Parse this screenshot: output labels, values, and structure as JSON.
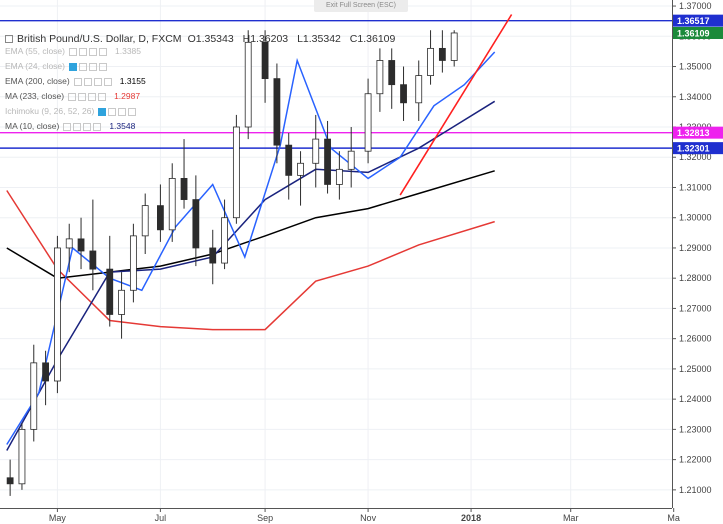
{
  "header": {
    "exit_label": "Exit Full Screen (ESC)",
    "title": "British Pound/U.S. Dollar, D, FXCM",
    "ohlc": {
      "o": "O1.35343",
      "h": "H1.36203",
      "l": "L1.35342",
      "c": "C1.36109"
    }
  },
  "indicators": [
    {
      "label": "EMA (55, close)",
      "value": "1.3385",
      "color": "#1a237e",
      "faded": true
    },
    {
      "label": "EMA (24, close)",
      "value": "",
      "color": "#2962ff",
      "faded": true
    },
    {
      "label": "EMA (200, close)",
      "value": "1.3155",
      "color": "#000000",
      "faded": false
    },
    {
      "label": "MA (233, close)",
      "value": "1.2987",
      "color": "#e53935",
      "faded": false
    },
    {
      "label": "Ichimoku (9, 26, 52, 26)",
      "value": "",
      "color": "#2fa3dd",
      "faded": true
    },
    {
      "label": "MA (10, close)",
      "value": "1.3548",
      "color": "#1a237e",
      "faded": false
    }
  ],
  "chart_data": {
    "type": "candlestick",
    "title": "British Pound/U.S. Dollar, D, FXCM",
    "y_axis": {
      "ticks": [
        "1.37000",
        "1.36000",
        "1.35000",
        "1.34000",
        "1.33000",
        "1.32000",
        "1.31000",
        "1.30000",
        "1.29000",
        "1.28000",
        "1.27000",
        "1.26000",
        "1.25000",
        "1.24000",
        "1.23000",
        "1.22000",
        "1.21000"
      ],
      "range": [
        1.204,
        1.372
      ]
    },
    "x_axis": {
      "ticks": [
        "May",
        "Jul",
        "Sep",
        "Nov",
        "2018",
        "Mar",
        "Ma"
      ]
    },
    "price_labels": [
      {
        "text": "1.36517",
        "value": 1.36517,
        "color": "#1f2fcf",
        "line": true
      },
      {
        "text": "1.36109",
        "value": 1.36109,
        "color": "#1b8a3a",
        "line": false
      },
      {
        "text": "1.32813",
        "value": 1.32813,
        "color": "#ee22ee",
        "line": true
      },
      {
        "text": "1.32301",
        "value": 1.32301,
        "color": "#1f2fcf",
        "line": true
      }
    ],
    "trendline": {
      "from": [
        "2017-11-20",
        1.3075
      ],
      "to": [
        "2018-01-25",
        1.3672
      ],
      "color": "#ff2020"
    },
    "series": [
      {
        "name": "MA (233, close)",
        "color": "#e53935",
        "points": [
          [
            "2017-04-01",
            1.309
          ],
          [
            "2017-05-01",
            1.283
          ],
          [
            "2017-06-01",
            1.266
          ],
          [
            "2017-07-01",
            1.264
          ],
          [
            "2017-08-01",
            1.263
          ],
          [
            "2017-09-01",
            1.263
          ],
          [
            "2017-10-01",
            1.279
          ],
          [
            "2017-11-01",
            1.284
          ],
          [
            "2017-12-01",
            1.291
          ],
          [
            "2018-01-15",
            1.2987
          ]
        ]
      },
      {
        "name": "EMA (200, close)",
        "color": "#000000",
        "points": [
          [
            "2017-04-01",
            1.29
          ],
          [
            "2017-05-01",
            1.28
          ],
          [
            "2017-06-01",
            1.282
          ],
          [
            "2017-07-01",
            1.284
          ],
          [
            "2017-08-01",
            1.288
          ],
          [
            "2017-09-01",
            1.294
          ],
          [
            "2017-10-01",
            1.3
          ],
          [
            "2017-11-01",
            1.303
          ],
          [
            "2017-12-01",
            1.308
          ],
          [
            "2018-01-15",
            1.3155
          ]
        ]
      },
      {
        "name": "EMA (55, close)",
        "color": "#1a237e",
        "points": [
          [
            "2017-04-01",
            1.223
          ],
          [
            "2017-05-01",
            1.253
          ],
          [
            "2017-06-01",
            1.282
          ],
          [
            "2017-07-01",
            1.283
          ],
          [
            "2017-08-01",
            1.287
          ],
          [
            "2017-09-01",
            1.306
          ],
          [
            "2017-10-01",
            1.316
          ],
          [
            "2017-11-01",
            1.315
          ],
          [
            "2017-12-01",
            1.323
          ],
          [
            "2018-01-15",
            1.3385
          ]
        ]
      },
      {
        "name": "MA (10, close)",
        "color": "#2962ff",
        "points": [
          [
            "2017-04-01",
            1.225
          ],
          [
            "2017-04-20",
            1.242
          ],
          [
            "2017-05-10",
            1.29
          ],
          [
            "2017-06-01",
            1.28
          ],
          [
            "2017-06-20",
            1.276
          ],
          [
            "2017-07-10",
            1.297
          ],
          [
            "2017-08-01",
            1.311
          ],
          [
            "2017-08-20",
            1.287
          ],
          [
            "2017-09-10",
            1.324
          ],
          [
            "2017-09-20",
            1.352
          ],
          [
            "2017-10-10",
            1.323
          ],
          [
            "2017-11-01",
            1.313
          ],
          [
            "2017-11-20",
            1.32
          ],
          [
            "2017-12-10",
            1.337
          ],
          [
            "2017-12-28",
            1.344
          ],
          [
            "2018-01-15",
            1.3548
          ]
        ]
      }
    ],
    "candles": [
      [
        "2017-04-03",
        1.214,
        1.22,
        1.208,
        1.212
      ],
      [
        "2017-04-10",
        1.212,
        1.232,
        1.21,
        1.23
      ],
      [
        "2017-04-17",
        1.23,
        1.258,
        1.226,
        1.252
      ],
      [
        "2017-04-24",
        1.252,
        1.256,
        1.238,
        1.246
      ],
      [
        "2017-05-01",
        1.246,
        1.294,
        1.242,
        1.29
      ],
      [
        "2017-05-08",
        1.29,
        1.298,
        1.282,
        1.293
      ],
      [
        "2017-05-15",
        1.293,
        1.3,
        1.283,
        1.289
      ],
      [
        "2017-05-22",
        1.289,
        1.306,
        1.276,
        1.283
      ],
      [
        "2017-06-01",
        1.283,
        1.294,
        1.264,
        1.268
      ],
      [
        "2017-06-08",
        1.268,
        1.282,
        1.26,
        1.276
      ],
      [
        "2017-06-15",
        1.276,
        1.298,
        1.272,
        1.294
      ],
      [
        "2017-06-22",
        1.294,
        1.308,
        1.288,
        1.304
      ],
      [
        "2017-07-01",
        1.304,
        1.311,
        1.292,
        1.296
      ],
      [
        "2017-07-08",
        1.296,
        1.318,
        1.292,
        1.313
      ],
      [
        "2017-07-15",
        1.313,
        1.326,
        1.303,
        1.306
      ],
      [
        "2017-07-22",
        1.306,
        1.314,
        1.284,
        1.29
      ],
      [
        "2017-08-01",
        1.29,
        1.296,
        1.278,
        1.285
      ],
      [
        "2017-08-08",
        1.285,
        1.306,
        1.283,
        1.3
      ],
      [
        "2017-08-15",
        1.3,
        1.334,
        1.298,
        1.33
      ],
      [
        "2017-08-22",
        1.33,
        1.362,
        1.326,
        1.358
      ],
      [
        "2017-09-01",
        1.358,
        1.362,
        1.338,
        1.346
      ],
      [
        "2017-09-08",
        1.346,
        1.351,
        1.318,
        1.324
      ],
      [
        "2017-09-15",
        1.324,
        1.328,
        1.306,
        1.314
      ],
      [
        "2017-09-22",
        1.314,
        1.322,
        1.304,
        1.318
      ],
      [
        "2017-10-01",
        1.318,
        1.334,
        1.31,
        1.326
      ],
      [
        "2017-10-08",
        1.326,
        1.332,
        1.308,
        1.311
      ],
      [
        "2017-10-15",
        1.311,
        1.322,
        1.306,
        1.316
      ],
      [
        "2017-10-22",
        1.316,
        1.33,
        1.31,
        1.322
      ],
      [
        "2017-11-01",
        1.322,
        1.346,
        1.318,
        1.341
      ],
      [
        "2017-11-08",
        1.341,
        1.356,
        1.335,
        1.352
      ],
      [
        "2017-11-15",
        1.352,
        1.356,
        1.336,
        1.344
      ],
      [
        "2017-11-22",
        1.344,
        1.35,
        1.332,
        1.338
      ],
      [
        "2017-12-01",
        1.338,
        1.352,
        1.332,
        1.347
      ],
      [
        "2017-12-08",
        1.347,
        1.362,
        1.344,
        1.356
      ],
      [
        "2017-12-15",
        1.356,
        1.362,
        1.348,
        1.352
      ],
      [
        "2017-12-22",
        1.352,
        1.362,
        1.35,
        1.3611
      ]
    ]
  }
}
